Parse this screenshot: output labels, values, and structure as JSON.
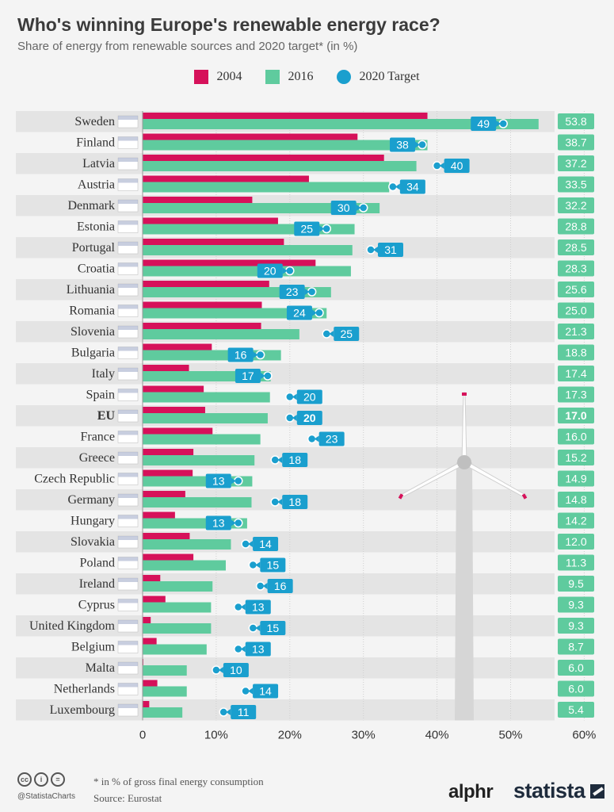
{
  "title": "Who's winning Europe's renewable energy race?",
  "subtitle": "Share of energy from renewable sources and 2020 target* (in %)",
  "legend": [
    {
      "label": "2004",
      "color": "#d6115a",
      "shape": "square"
    },
    {
      "label": "2016",
      "color": "#5fcb9e",
      "shape": "square"
    },
    {
      "label": "2020 Target",
      "color": "#1a9fce",
      "shape": "dot"
    }
  ],
  "footnote": "* in % of gross final energy consumption",
  "source": "Source: Eurostat",
  "handle": "@StatistaCharts",
  "brands": {
    "left": "alphr",
    "right": "statista"
  },
  "icons": [
    "cc-icon",
    "attribution-icon",
    "no-derivatives-icon",
    "wind-turbine-icon",
    "flag-icons"
  ],
  "colors": {
    "bar_2004": "#d6115a",
    "bar_2016": "#5fcb9e",
    "target": "#1a9fce",
    "value_box": "#5fcb9e"
  },
  "chart_data": {
    "type": "bar",
    "orientation": "horizontal",
    "title": "Who's winning Europe's renewable energy race?",
    "subtitle": "Share of energy from renewable sources and 2020 target* (in %)",
    "xlim": [
      0,
      60
    ],
    "x_ticks": [
      "0",
      "10%",
      "20%",
      "30%",
      "40%",
      "50%",
      "60%"
    ],
    "x_tick_values": [
      0,
      10,
      20,
      30,
      40,
      50,
      60
    ],
    "grid": true,
    "legend_position": "top-center",
    "categories": [
      "Sweden",
      "Finland",
      "Latvia",
      "Austria",
      "Denmark",
      "Estonia",
      "Portugal",
      "Croatia",
      "Lithuania",
      "Romania",
      "Slovenia",
      "Bulgaria",
      "Italy",
      "Spain",
      "EU",
      "France",
      "Greece",
      "Czech Republic",
      "Germany",
      "Hungary",
      "Slovakia",
      "Poland",
      "Ireland",
      "Cyprus",
      "United Kingdom",
      "Belgium",
      "Malta",
      "Netherlands",
      "Luxembourg"
    ],
    "bold_categories": [
      "EU"
    ],
    "series": [
      {
        "name": "2004",
        "values": [
          38.7,
          29.2,
          32.8,
          22.6,
          14.9,
          18.4,
          19.2,
          23.5,
          17.2,
          16.2,
          16.1,
          9.4,
          6.3,
          8.3,
          8.5,
          9.5,
          6.9,
          6.8,
          5.8,
          4.4,
          6.4,
          6.9,
          2.4,
          3.1,
          1.1,
          1.9,
          0.1,
          2.0,
          0.9
        ]
      },
      {
        "name": "2016",
        "values": [
          53.8,
          38.7,
          37.2,
          33.5,
          32.2,
          28.8,
          28.5,
          28.3,
          25.6,
          25.0,
          21.3,
          18.8,
          17.4,
          17.3,
          17.0,
          16.0,
          15.2,
          14.9,
          14.8,
          14.2,
          12.0,
          11.3,
          9.5,
          9.3,
          9.3,
          8.7,
          6.0,
          6.0,
          5.4
        ]
      },
      {
        "name": "2020 Target",
        "values": [
          49,
          38,
          40,
          34,
          30,
          25,
          31,
          20,
          23,
          24,
          25,
          16,
          17,
          20,
          20,
          23,
          18,
          13,
          18,
          13,
          14,
          15,
          16,
          13,
          15,
          13,
          10,
          14,
          11
        ]
      }
    ],
    "value_labels_2016": [
      "53.8",
      "38.7",
      "37.2",
      "33.5",
      "32.2",
      "28.8",
      "28.5",
      "28.3",
      "25.6",
      "25.0",
      "21.3",
      "18.8",
      "17.4",
      "17.3",
      "17.0",
      "16.0",
      "15.2",
      "14.9",
      "14.8",
      "14.2",
      "12.0",
      "11.3",
      "9.5",
      "9.3",
      "9.3",
      "8.7",
      "6.0",
      "6.0",
      "5.4"
    ],
    "target_labels": [
      "49",
      "38",
      "40",
      "34",
      "30",
      "25",
      "31",
      "20",
      "23",
      "24",
      "25",
      "16",
      "17",
      "20",
      "20",
      "23",
      "18",
      "13",
      "18",
      "13",
      "14",
      "15",
      "16",
      "13",
      "15",
      "13",
      "10",
      "14",
      "11"
    ]
  }
}
